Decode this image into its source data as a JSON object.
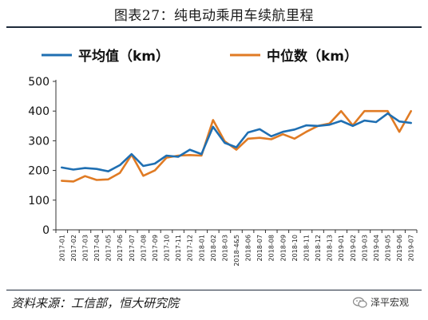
{
  "title": "图表27：纯电动乘用车续航里程",
  "source": "资料来源：工信部，恒大研究院",
  "brand": "泽平宏观",
  "colors": {
    "series_0": "#1f6fb2",
    "series_1": "#e07b24",
    "axis": "#333333"
  },
  "chart_data": {
    "type": "line",
    "title": "",
    "xlabel": "",
    "ylabel": "",
    "ylim": [
      0,
      500
    ],
    "yticks": [
      0,
      100,
      200,
      300,
      400,
      500
    ],
    "grid": false,
    "legend_position": "top",
    "categories": [
      "2017-01",
      "2017-02",
      "2017-03",
      "2017-04",
      "2017-05",
      "2017-06",
      "2017-07",
      "2017-08",
      "2017-09",
      "2017-10",
      "2017-11",
      "2017-12",
      "2018-01",
      "2018-02",
      "2018-03",
      "2018-4&5",
      "2018-06",
      "2018-07",
      "2018-08",
      "2018-09",
      "2018-10",
      "2018-11",
      "2018-12",
      "2018-13",
      "2019-01",
      "2019-02",
      "2019-03",
      "2019-04",
      "2019-05",
      "2019-06",
      "2019-07"
    ],
    "series": [
      {
        "name": "平均值（km）",
        "values": [
          210,
          203,
          208,
          205,
          197,
          218,
          255,
          215,
          223,
          250,
          246,
          270,
          255,
          347,
          293,
          278,
          328,
          339,
          315,
          330,
          338,
          352,
          350,
          354,
          367,
          350,
          368,
          363,
          392,
          365,
          360
        ]
      },
      {
        "name": "中位数（km）",
        "values": [
          165,
          163,
          181,
          168,
          170,
          192,
          253,
          182,
          200,
          243,
          250,
          252,
          250,
          370,
          298,
          270,
          307,
          310,
          305,
          322,
          307,
          330,
          350,
          358,
          400,
          352,
          400,
          400,
          400,
          330,
          400
        ]
      }
    ]
  }
}
